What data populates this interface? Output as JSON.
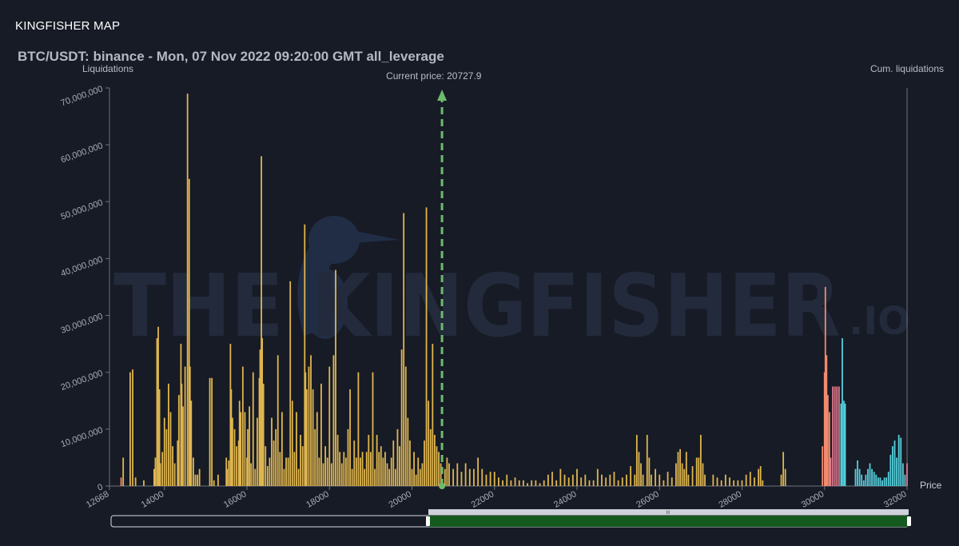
{
  "app": {
    "title": "KINGFISHER MAP"
  },
  "watermark": {
    "main": "THE KINGFISHER",
    "suffix": ".IO"
  },
  "navigator": {
    "handle_label": "III"
  },
  "colors": {
    "background": "#171b26",
    "gold": "#e0b64e",
    "salmon": "#f28a6e",
    "pink": "#e07a8e",
    "cyan": "#56d0dd",
    "current_price_line": "#6dbb6d",
    "navigator_fill": "#145a1e"
  },
  "chart_data": {
    "type": "bar",
    "title": "BTC/USDT: binance - Mon, 07 Nov 2022 09:20:00 GMT all_leverage",
    "ylabel": "Liquidations",
    "y2label": "Cum. liquidations",
    "xlabel": "Price",
    "xlim": [
      12668,
      32000
    ],
    "ylim": [
      0,
      70000000
    ],
    "x_ticks": [
      "12668",
      "14000",
      "16000",
      "18000",
      "20000",
      "22000",
      "24000",
      "26000",
      "28000",
      "30000",
      "32000"
    ],
    "y_ticks": [
      "0",
      "10,000,000",
      "20,000,000",
      "30,000,000",
      "40,000,000",
      "50,000,000",
      "60,000,000",
      "70,000,000"
    ],
    "current_price": {
      "label": "Current price: 20727.9",
      "value": 20727.9
    },
    "series": [
      {
        "color": "gold",
        "points": [
          [
            13000,
            5000000
          ],
          [
            13170,
            20000000
          ],
          [
            13230,
            20500000
          ],
          [
            13300,
            1500000
          ],
          [
            13500,
            1000000
          ],
          [
            13750,
            3000000
          ],
          [
            13780,
            5000000
          ],
          [
            13820,
            26000000
          ],
          [
            13850,
            28000000
          ],
          [
            13880,
            17000000
          ],
          [
            13900,
            4000000
          ],
          [
            13950,
            6000000
          ],
          [
            14000,
            12000000
          ],
          [
            14050,
            10000000
          ],
          [
            14100,
            18000000
          ],
          [
            14150,
            13000000
          ],
          [
            14200,
            7000000
          ],
          [
            14250,
            4000000
          ],
          [
            14320,
            8000000
          ],
          [
            14350,
            16000000
          ],
          [
            14400,
            25000000
          ],
          [
            14420,
            18000000
          ],
          [
            14450,
            14000000
          ],
          [
            14500,
            21000000
          ],
          [
            14560,
            69000000
          ],
          [
            14600,
            54000000
          ],
          [
            14620,
            21000000
          ],
          [
            14650,
            15000000
          ],
          [
            14700,
            5000000
          ],
          [
            14750,
            2000000
          ],
          [
            14800,
            2000000
          ],
          [
            14850,
            3000000
          ],
          [
            15100,
            19000000
          ],
          [
            15150,
            19000000
          ],
          [
            15200,
            1000000
          ],
          [
            15300,
            2000000
          ],
          [
            15500,
            5000000
          ],
          [
            15520,
            3000000
          ],
          [
            15560,
            4500000
          ],
          [
            15600,
            25000000
          ],
          [
            15620,
            17000000
          ],
          [
            15650,
            12000000
          ],
          [
            15700,
            10000000
          ],
          [
            15750,
            7000000
          ],
          [
            15800,
            8000000
          ],
          [
            15820,
            15000000
          ],
          [
            15850,
            13000000
          ],
          [
            15900,
            21000000
          ],
          [
            15950,
            13000000
          ],
          [
            16000,
            5000000
          ],
          [
            16020,
            10000000
          ],
          [
            16060,
            14000000
          ],
          [
            16100,
            4000000
          ],
          [
            16150,
            20000000
          ],
          [
            16200,
            3000000
          ],
          [
            16250,
            12000000
          ],
          [
            16300,
            19000000
          ],
          [
            16320,
            24000000
          ],
          [
            16350,
            58000000
          ],
          [
            16370,
            26000000
          ],
          [
            16400,
            18000000
          ],
          [
            16450,
            7000000
          ],
          [
            16500,
            3500000
          ],
          [
            16550,
            5000000
          ],
          [
            16600,
            12000000
          ],
          [
            16650,
            8000000
          ],
          [
            16700,
            10000000
          ],
          [
            16750,
            23000000
          ],
          [
            16800,
            6000000
          ],
          [
            16850,
            13000000
          ],
          [
            16900,
            3000000
          ],
          [
            16950,
            5000000
          ],
          [
            17000,
            5000000
          ],
          [
            17050,
            36000000
          ],
          [
            17100,
            15000000
          ],
          [
            17150,
            6000000
          ],
          [
            17200,
            13000000
          ],
          [
            17250,
            3000000
          ],
          [
            17300,
            9000000
          ],
          [
            17350,
            7000000
          ],
          [
            17400,
            46000000
          ],
          [
            17420,
            20000000
          ],
          [
            17450,
            17000000
          ],
          [
            17500,
            21000000
          ],
          [
            17550,
            23000000
          ],
          [
            17600,
            17000000
          ],
          [
            17650,
            10000000
          ],
          [
            17700,
            13000000
          ],
          [
            17750,
            5000000
          ],
          [
            17800,
            18000000
          ],
          [
            17850,
            4000000
          ],
          [
            17900,
            7000000
          ],
          [
            17950,
            5000000
          ],
          [
            18000,
            21000000
          ],
          [
            18050,
            4000000
          ],
          [
            18100,
            23000000
          ],
          [
            18150,
            38000000
          ],
          [
            18200,
            9000000
          ],
          [
            18250,
            6000000
          ],
          [
            18300,
            4000000
          ],
          [
            18350,
            6000000
          ],
          [
            18400,
            5000000
          ],
          [
            18450,
            10000000
          ],
          [
            18500,
            17000000
          ],
          [
            18550,
            3000000
          ],
          [
            18600,
            8000000
          ],
          [
            18650,
            5000000
          ],
          [
            18700,
            20000000
          ],
          [
            18750,
            5000000
          ],
          [
            18800,
            6000000
          ],
          [
            18850,
            3000000
          ],
          [
            18900,
            6000000
          ],
          [
            18950,
            9000000
          ],
          [
            19000,
            6000000
          ],
          [
            19050,
            20000000
          ],
          [
            19100,
            3000000
          ],
          [
            19150,
            9000000
          ],
          [
            19200,
            6000000
          ],
          [
            19250,
            7000000
          ],
          [
            19300,
            5000000
          ],
          [
            19350,
            6000000
          ],
          [
            19400,
            4000000
          ],
          [
            19450,
            3000000
          ],
          [
            19500,
            5000000
          ],
          [
            19550,
            8000000
          ],
          [
            19600,
            3000000
          ],
          [
            19650,
            10000000
          ],
          [
            19700,
            7000000
          ],
          [
            19750,
            24000000
          ],
          [
            19800,
            48000000
          ],
          [
            19850,
            21000000
          ],
          [
            19900,
            12000000
          ],
          [
            19950,
            8000000
          ],
          [
            20000,
            3000000
          ],
          [
            20050,
            6000000
          ],
          [
            20100,
            2000000
          ],
          [
            20150,
            5000000
          ],
          [
            20200,
            3000000
          ],
          [
            20250,
            4000000
          ],
          [
            20300,
            8000000
          ],
          [
            20350,
            49000000
          ],
          [
            20400,
            15000000
          ],
          [
            20450,
            10000000
          ],
          [
            20500,
            25000000
          ],
          [
            20550,
            9000000
          ],
          [
            20600,
            7000000
          ],
          [
            20650,
            6000000
          ],
          [
            20700,
            4000000
          ],
          [
            20800,
            3000000
          ],
          [
            20850,
            5000000
          ],
          [
            20900,
            4000000
          ],
          [
            21000,
            3000000
          ],
          [
            21100,
            4000000
          ],
          [
            21200,
            2500000
          ],
          [
            21300,
            4000000
          ],
          [
            21400,
            3000000
          ],
          [
            21500,
            3000000
          ],
          [
            21600,
            5000000
          ],
          [
            21700,
            3000000
          ],
          [
            21800,
            2000000
          ],
          [
            21900,
            2500000
          ],
          [
            22000,
            2500000
          ],
          [
            22100,
            1500000
          ],
          [
            22200,
            1000000
          ],
          [
            22300,
            2000000
          ],
          [
            22400,
            1000000
          ],
          [
            22500,
            1500000
          ],
          [
            22600,
            1000000
          ],
          [
            22700,
            1000000
          ],
          [
            22800,
            500000
          ],
          [
            22900,
            1000000
          ],
          [
            23000,
            1000000
          ],
          [
            23100,
            500000
          ],
          [
            23200,
            1000000
          ],
          [
            23300,
            2000000
          ],
          [
            23400,
            2500000
          ],
          [
            23500,
            1000000
          ],
          [
            23600,
            3000000
          ],
          [
            23700,
            2000000
          ],
          [
            23800,
            1500000
          ],
          [
            23900,
            2000000
          ],
          [
            24000,
            3000000
          ],
          [
            24100,
            1500000
          ],
          [
            24200,
            2000000
          ],
          [
            24300,
            1000000
          ],
          [
            24400,
            1000000
          ],
          [
            24500,
            3000000
          ],
          [
            24600,
            2000000
          ],
          [
            24700,
            1500000
          ],
          [
            24800,
            2000000
          ],
          [
            24900,
            2500000
          ],
          [
            25000,
            1000000
          ],
          [
            25100,
            1500000
          ],
          [
            25200,
            2000000
          ],
          [
            25300,
            3500000
          ],
          [
            25400,
            2000000
          ],
          [
            25450,
            9000000
          ],
          [
            25500,
            6000000
          ],
          [
            25550,
            4000000
          ],
          [
            25600,
            2000000
          ],
          [
            25700,
            9000000
          ],
          [
            25750,
            5000000
          ],
          [
            25800,
            2000000
          ],
          [
            25900,
            3000000
          ],
          [
            26000,
            2000000
          ],
          [
            26100,
            1000000
          ],
          [
            26200,
            2500000
          ],
          [
            26300,
            1500000
          ],
          [
            26400,
            4000000
          ],
          [
            26450,
            6000000
          ],
          [
            26500,
            6500000
          ],
          [
            26550,
            4000000
          ],
          [
            26600,
            3000000
          ],
          [
            26650,
            6000000
          ],
          [
            26700,
            2000000
          ],
          [
            26800,
            3500000
          ],
          [
            26900,
            5000000
          ],
          [
            26950,
            5000000
          ],
          [
            27000,
            9000000
          ],
          [
            27050,
            4000000
          ],
          [
            27100,
            2000000
          ],
          [
            27300,
            2000000
          ],
          [
            27400,
            1500000
          ],
          [
            27500,
            1000000
          ],
          [
            27600,
            2000000
          ],
          [
            27700,
            1500000
          ],
          [
            27800,
            1000000
          ],
          [
            27900,
            1000000
          ],
          [
            28000,
            1000000
          ],
          [
            28100,
            2000000
          ],
          [
            28200,
            2500000
          ],
          [
            28300,
            1500000
          ],
          [
            28400,
            3000000
          ],
          [
            28450,
            3500000
          ],
          [
            28500,
            1000000
          ],
          [
            28950,
            2000000
          ],
          [
            29000,
            6000000
          ],
          [
            29050,
            3000000
          ]
        ]
      },
      {
        "color": "salmon",
        "points": [
          [
            12950,
            1500000
          ],
          [
            29950,
            7000000
          ],
          [
            30000,
            20000000
          ],
          [
            30020,
            35000000
          ],
          [
            30050,
            23000000
          ],
          [
            30080,
            16000000
          ],
          [
            30120,
            13000000
          ]
        ]
      },
      {
        "color": "pink",
        "points": [
          [
            30150,
            5000000
          ],
          [
            30200,
            17500000
          ],
          [
            30250,
            17500000
          ],
          [
            30300,
            17500000
          ],
          [
            30350,
            17500000
          ],
          [
            32000,
            4000000
          ]
        ]
      },
      {
        "color": "cyan",
        "points": [
          [
            30400,
            14500000
          ],
          [
            30430,
            26000000
          ],
          [
            30470,
            15000000
          ],
          [
            30500,
            14500000
          ],
          [
            30750,
            3000000
          ],
          [
            30800,
            4500000
          ],
          [
            30850,
            3000000
          ],
          [
            30900,
            2000000
          ],
          [
            30950,
            1000000
          ],
          [
            31000,
            2000000
          ],
          [
            31050,
            3000000
          ],
          [
            31100,
            4000000
          ],
          [
            31150,
            3000000
          ],
          [
            31200,
            2500000
          ],
          [
            31250,
            2000000
          ],
          [
            31300,
            1500000
          ],
          [
            31350,
            1500000
          ],
          [
            31400,
            1000000
          ],
          [
            31450,
            1500000
          ],
          [
            31500,
            1500000
          ],
          [
            31550,
            2500000
          ],
          [
            31600,
            5500000
          ],
          [
            31650,
            7000000
          ],
          [
            31700,
            8000000
          ],
          [
            31750,
            5000000
          ],
          [
            31800,
            9000000
          ],
          [
            31850,
            8500000
          ],
          [
            31900,
            4000000
          ],
          [
            31950,
            2000000
          ]
        ]
      }
    ]
  }
}
